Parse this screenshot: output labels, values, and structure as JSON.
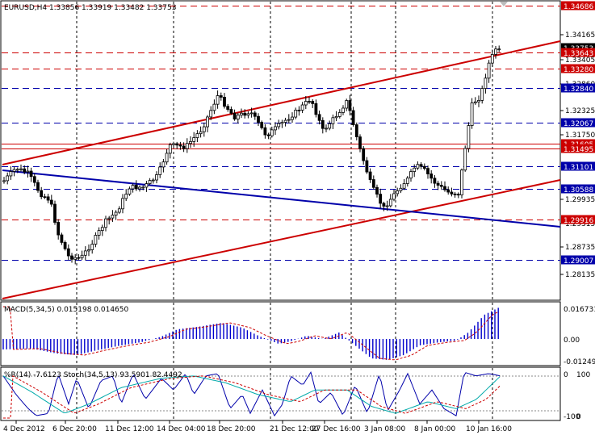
{
  "main_panel": {
    "header": "EURUSD,H4  1.33856 1.33919 1.33482 1.33753",
    "price_ticks": [
      "1.34165",
      "1.33405",
      "1.32860",
      "1.32325",
      "1.31750",
      "1.29935",
      "1.29315",
      "1.28735",
      "1.28135"
    ],
    "levels": [
      {
        "value": "1.34686",
        "color": "#cc0000"
      },
      {
        "value": "1.33753",
        "color": "#000000"
      },
      {
        "value": "1.33643",
        "color": "#cc0000"
      },
      {
        "value": "1.33280",
        "color": "#cc0000"
      },
      {
        "value": "1.32840",
        "color": "#0000aa"
      },
      {
        "value": "1.32067",
        "color": "#0000aa"
      },
      {
        "value": "1.31605",
        "color": "#cc0000"
      },
      {
        "value": "1.31495",
        "color": "#cc0000"
      },
      {
        "value": "1.31101",
        "color": "#0000aa"
      },
      {
        "value": "1.30588",
        "color": "#0000aa"
      },
      {
        "value": "1.29916",
        "color": "#cc0000"
      },
      {
        "value": "1.29007",
        "color": "#0000aa"
      }
    ]
  },
  "macd_panel": {
    "header": "MACD(5,34,5) 0.015198 0.014650",
    "ticks": [
      "0.016731",
      "0.00",
      "-0.01249"
    ]
  },
  "osc_panel": {
    "header": "%R(14) -7.6123  Stoch(34,5,13) 93.5901 82.4492",
    "ticks": [
      "0",
      "-100",
      "100",
      "0"
    ]
  },
  "time_axis": {
    "labels": [
      "4 Dec 2012",
      "6 Dec 20:00",
      "11 Dec 12:00",
      "14 Dec 04:00",
      "18 Dec 20:00",
      "21 Dec 12:00",
      "27 Dec 16:00",
      "3 Jan 08:00",
      "8 Jan 00:00",
      "10 Jan 16:00"
    ]
  },
  "colors": {
    "candle": "#000000",
    "bull_fill": "#ffffff",
    "trend_red": "#cc0000",
    "trend_blue": "#0000aa",
    "macd_hist": "#0000cc",
    "signal": "#cc0000",
    "wpr": "#0000aa",
    "stoch_main": "#00aaaa",
    "stoch_signal": "#cc0000"
  }
}
